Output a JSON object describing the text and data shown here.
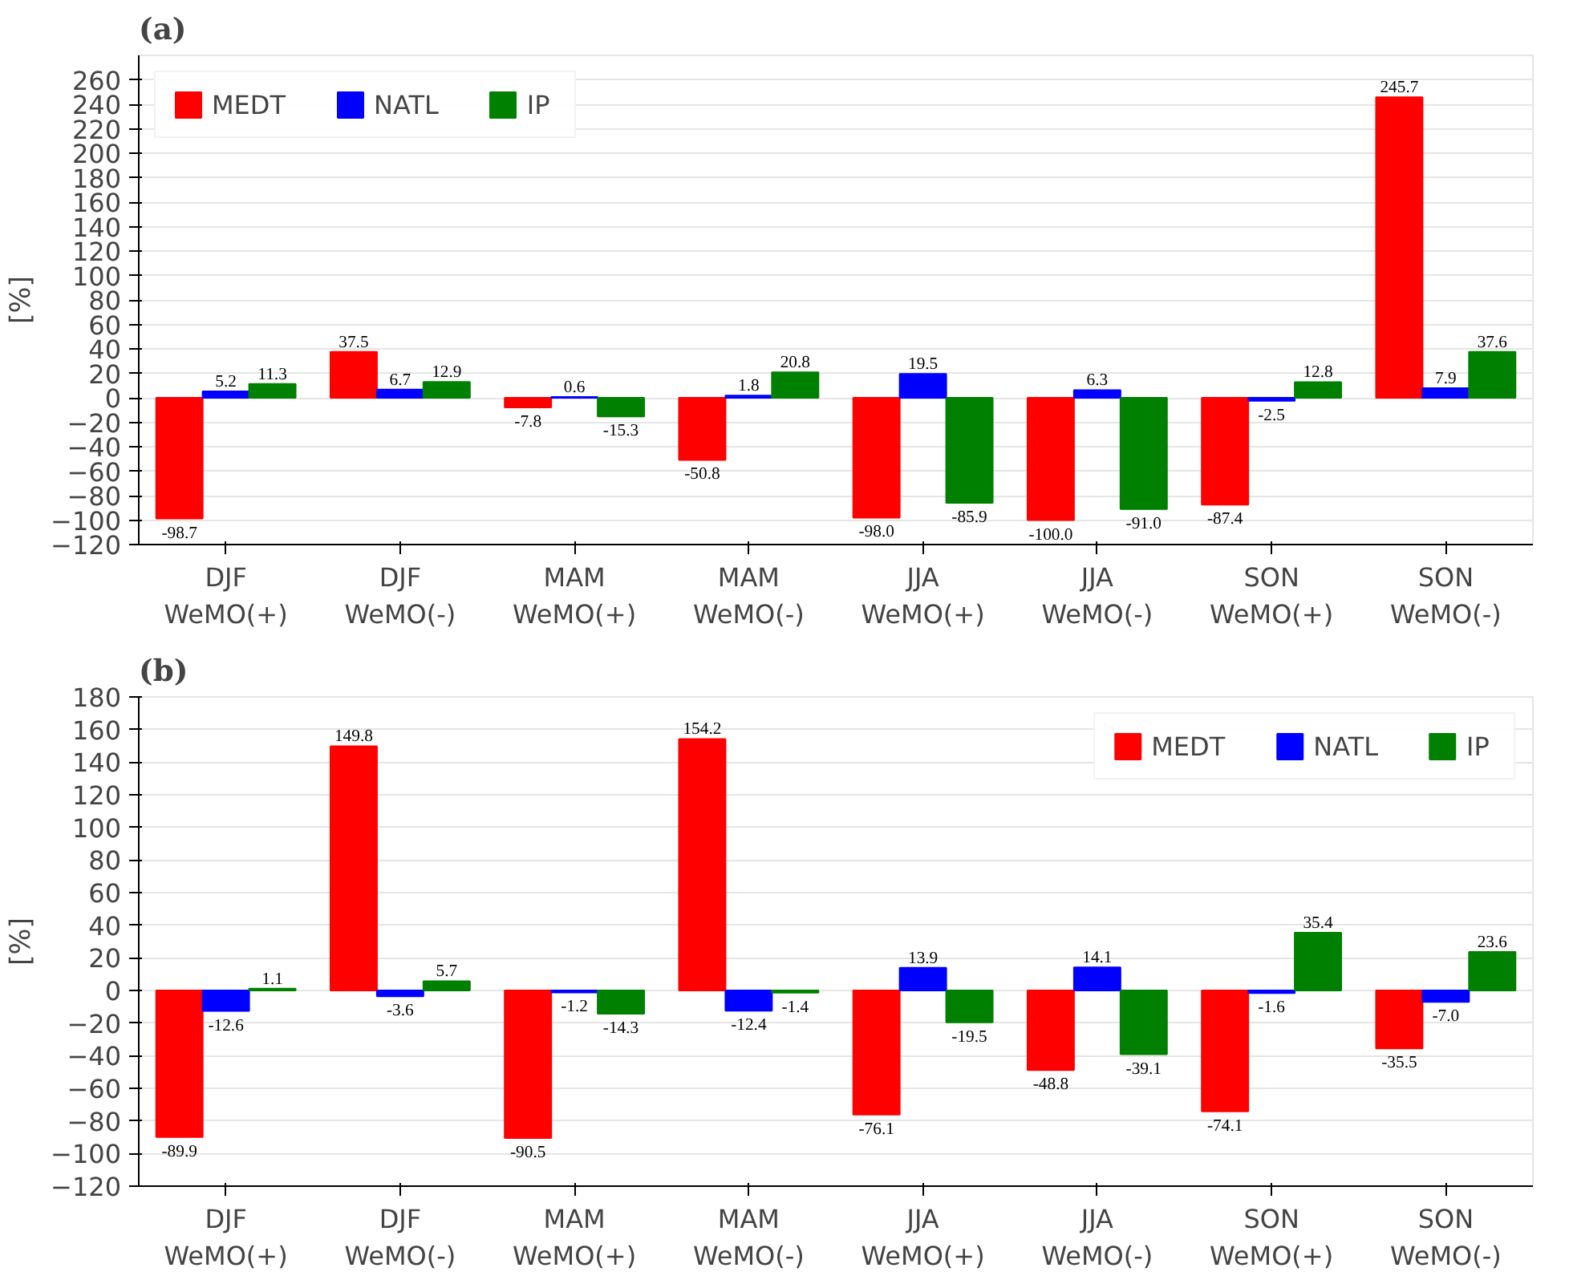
{
  "chart_data": [
    {
      "type": "bar",
      "title": "(a)",
      "ylabel": "[%]",
      "categories": [
        "DJF\nWeMO(+)",
        "DJF\nWeMO(-)",
        "MAM\nWeMO(+)",
        "MAM\nWeMO(-)",
        "JJA\nWeMO(+)",
        "JJA\nWeMO(-)",
        "SON\nWeMO(+)",
        "SON\nWeMO(-)"
      ],
      "series": [
        {
          "name": "MEDT",
          "color": "#ff0000",
          "values": [
            -98.7,
            37.5,
            -7.8,
            -50.8,
            -98.0,
            -100.0,
            -87.4,
            245.7
          ],
          "value_labels": [
            "-98.7",
            "37.5",
            "-7.8",
            "-50.8",
            "-98.0",
            "-100.0",
            "-87.4",
            "245.7"
          ]
        },
        {
          "name": "NATL",
          "color": "#0000ff",
          "values": [
            5.2,
            6.7,
            0.6,
            1.8,
            19.5,
            6.3,
            -2.5,
            7.9
          ],
          "value_labels": [
            "5.2",
            "6.7",
            "0.6",
            "1.8",
            "19.5",
            "6.3",
            "-2.5",
            "7.9"
          ]
        },
        {
          "name": "IP",
          "color": "#008000",
          "values": [
            11.3,
            12.9,
            -15.3,
            20.8,
            -85.9,
            -91.0,
            12.8,
            37.6
          ],
          "value_labels": [
            "11.3",
            "12.9",
            "-15.3",
            "20.8",
            "-85.9",
            "-91.0",
            "12.8",
            "37.6"
          ]
        }
      ],
      "ylim": [
        -120,
        280
      ],
      "yticks": [
        -120,
        -100,
        -80,
        -60,
        -40,
        -20,
        0,
        20,
        40,
        60,
        80,
        100,
        120,
        140,
        160,
        180,
        200,
        220,
        240,
        260
      ],
      "grid": "y",
      "legend": "top left"
    },
    {
      "type": "bar",
      "title": "(b)",
      "ylabel": "[%]",
      "categories": [
        "DJF\nWeMO(+)",
        "DJF\nWeMO(-)",
        "MAM\nWeMO(+)",
        "MAM\nWeMO(-)",
        "JJA\nWeMO(+)",
        "JJA\nWeMO(-)",
        "SON\nWeMO(+)",
        "SON\nWeMO(-)"
      ],
      "series": [
        {
          "name": "MEDT",
          "color": "#ff0000",
          "values": [
            -89.9,
            149.8,
            -90.5,
            154.2,
            -76.1,
            -48.8,
            -74.1,
            -35.5
          ],
          "value_labels": [
            "-89.9",
            "149.8",
            "-90.5",
            "154.2",
            "-76.1",
            "-48.8",
            "-74.1",
            "-35.5"
          ]
        },
        {
          "name": "NATL",
          "color": "#0000ff",
          "values": [
            -12.6,
            -3.6,
            -1.2,
            -12.4,
            13.9,
            14.1,
            -1.6,
            -7.0
          ],
          "value_labels": [
            "-12.6",
            "-3.6",
            "-1.2",
            "-12.4",
            "13.9",
            "14.1",
            "-1.6",
            "-7.0"
          ]
        },
        {
          "name": "IP",
          "color": "#008000",
          "values": [
            1.1,
            5.7,
            -14.3,
            -1.4,
            -19.5,
            -39.1,
            35.4,
            23.6
          ],
          "value_labels": [
            "1.1",
            "5.7",
            "-14.3",
            "-1.4",
            "-19.5",
            "-39.1",
            "35.4",
            "23.6"
          ]
        }
      ],
      "ylim": [
        -120,
        180
      ],
      "yticks": [
        -120,
        -100,
        -80,
        -60,
        -40,
        -20,
        0,
        20,
        40,
        60,
        80,
        100,
        120,
        140,
        160,
        180
      ],
      "grid": "y",
      "legend": "top right"
    }
  ]
}
